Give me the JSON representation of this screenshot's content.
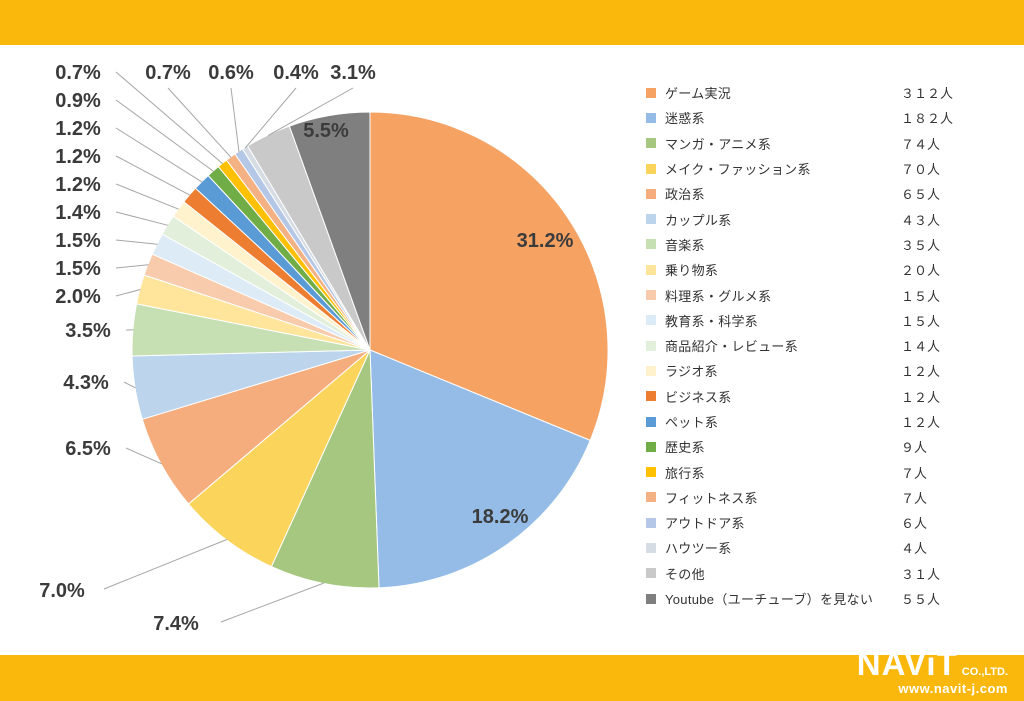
{
  "page": {
    "band_color": "#FBB80C",
    "background": "#FFFFFF"
  },
  "footer": {
    "brand": "NAViT",
    "brand_suffix": "CO.,LTD.",
    "website": "www.navit-j.com"
  },
  "chart_data": {
    "type": "pie",
    "title": "",
    "unit": "人",
    "total": 1000,
    "legend_position": "right",
    "start_angle_deg": 0,
    "direction": "clockwise",
    "series": [
      {
        "label": "ゲーム実況",
        "count": 312,
        "pct_label": "31.2%",
        "count_label": "３１２人",
        "color": "#F5A263"
      },
      {
        "label": "迷惑系",
        "count": 182,
        "pct_label": "18.2%",
        "count_label": "１８２人",
        "color": "#94BCE6"
      },
      {
        "label": "マンガ・アニメ系",
        "count": 74,
        "pct_label": "7.4%",
        "count_label": "７４人",
        "color": "#A5C77F"
      },
      {
        "label": "メイク・ファッション系",
        "count": 70,
        "pct_label": "7.0%",
        "count_label": "７０人",
        "color": "#FBD45C"
      },
      {
        "label": "政治系",
        "count": 65,
        "pct_label": "6.5%",
        "count_label": "６５人",
        "color": "#F5AD7E"
      },
      {
        "label": "カップル系",
        "count": 43,
        "pct_label": "4.3%",
        "count_label": "４３人",
        "color": "#BCD5ED"
      },
      {
        "label": "音楽系",
        "count": 35,
        "pct_label": "3.5%",
        "count_label": "３５人",
        "color": "#C6E0B4"
      },
      {
        "label": "乗り物系",
        "count": 20,
        "pct_label": "2.0%",
        "count_label": "２０人",
        "color": "#FFE49B"
      },
      {
        "label": "料理系・グルメ系",
        "count": 15,
        "pct_label": "1.5%",
        "count_label": "１５人",
        "color": "#F8CBAD"
      },
      {
        "label": "教育系・科学系",
        "count": 15,
        "pct_label": "1.5%",
        "count_label": "１５人",
        "color": "#DDEBF7"
      },
      {
        "label": "商品紹介・レビュー系",
        "count": 14,
        "pct_label": "1.4%",
        "count_label": "１４人",
        "color": "#E2EFDA"
      },
      {
        "label": "ラジオ系",
        "count": 12,
        "pct_label": "1.2%",
        "count_label": "１２人",
        "color": "#FFF2CC"
      },
      {
        "label": "ビジネス系",
        "count": 12,
        "pct_label": "1.2%",
        "count_label": "１２人",
        "color": "#ED7D31"
      },
      {
        "label": "ペット系",
        "count": 12,
        "pct_label": "1.2%",
        "count_label": "１２人",
        "color": "#5B9BD5"
      },
      {
        "label": "歴史系",
        "count": 9,
        "pct_label": "0.9%",
        "count_label": "９人",
        "color": "#70AD47"
      },
      {
        "label": "旅行系",
        "count": 7,
        "pct_label": "0.7%",
        "count_label": "７人",
        "color": "#FFC000"
      },
      {
        "label": "フィットネス系",
        "count": 7,
        "pct_label": "0.7%",
        "count_label": "７人",
        "color": "#F4B183"
      },
      {
        "label": "アウトドア系",
        "count": 6,
        "pct_label": "0.6%",
        "count_label": "６人",
        "color": "#B4C7E7"
      },
      {
        "label": "ハウツー系",
        "count": 4,
        "pct_label": "0.4%",
        "count_label": "４人",
        "color": "#D6DCE4"
      },
      {
        "label": "その他",
        "count": 31,
        "pct_label": "3.1%",
        "count_label": "３１人",
        "color": "#C9C9C9"
      },
      {
        "label": "Youtube（ユーチューブ）を見ない",
        "count": 55,
        "pct_label": "5.5%",
        "count_label": "５５人",
        "color": "#7F7F7F"
      }
    ]
  }
}
